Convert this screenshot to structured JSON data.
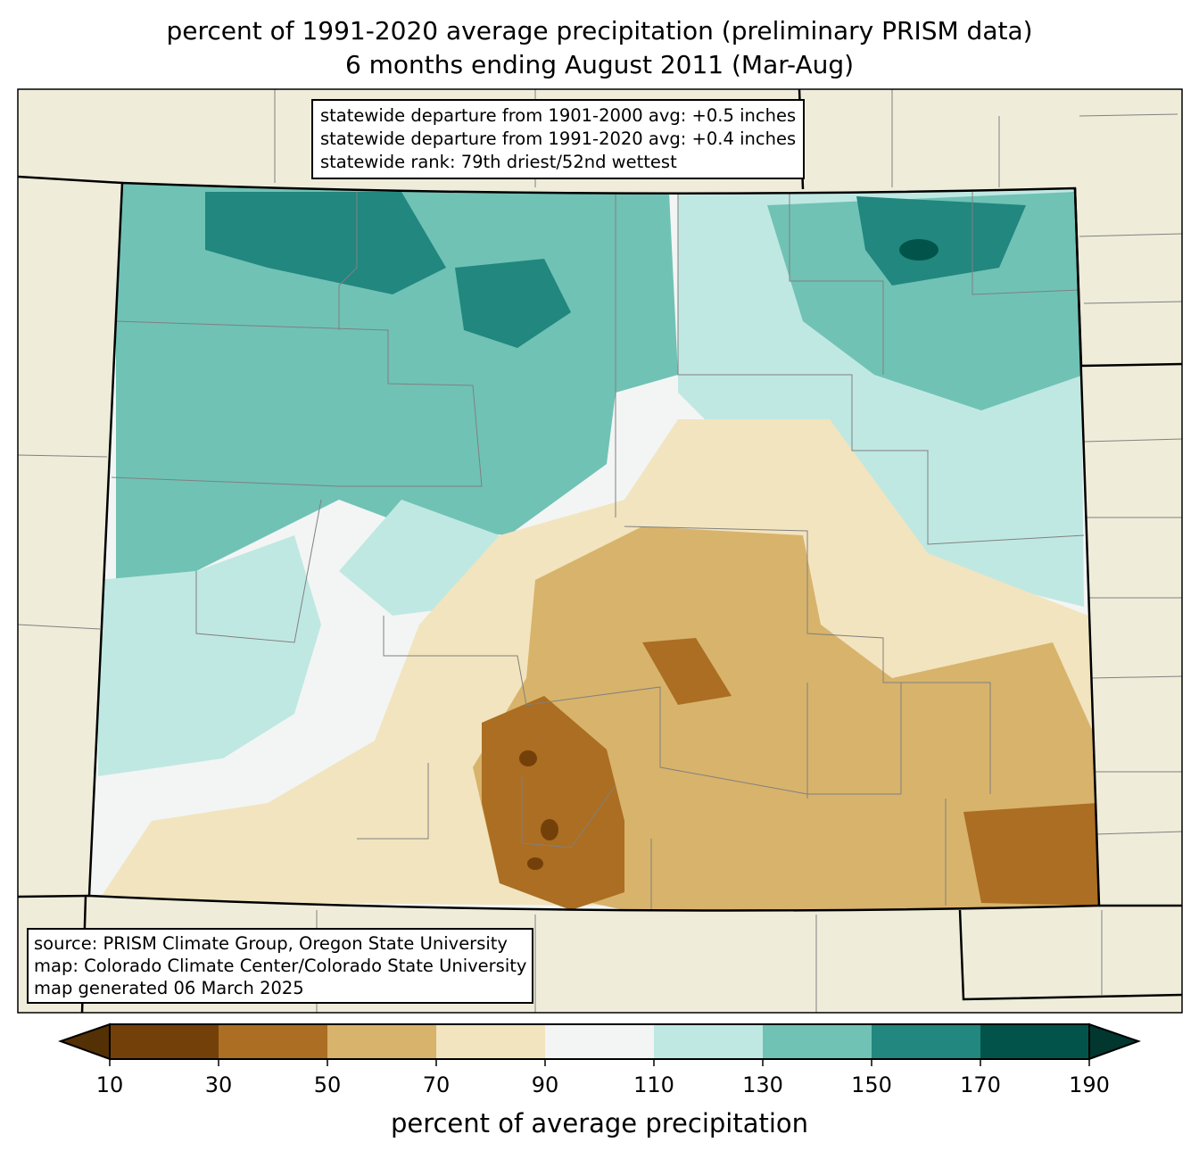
{
  "title": {
    "line1": "percent of 1991-2020 average precipitation (preliminary PRISM data)",
    "line2": "6 months ending August 2011 (Mar-Aug)"
  },
  "stats_box": {
    "line1": "statewide departure from 1901-2000 avg: +0.5 inches",
    "line2": "statewide departure from 1991-2020 avg: +0.4 inches",
    "line3": "statewide rank: 79th driest/52nd wettest"
  },
  "source_box": {
    "line1": "source: PRISM Climate Group, Oregon State University",
    "line2": "map: Colorado Climate Center/Colorado State University",
    "line3": "map generated 06 March 2025"
  },
  "colorbar": {
    "label": "percent of average precipitation",
    "ticks": [
      "10",
      "30",
      "50",
      "70",
      "90",
      "110",
      "130",
      "150",
      "170",
      "190"
    ],
    "colors": [
      "#74400a",
      "#ab6e22",
      "#d8b36b",
      "#f2e4be",
      "#f3f5f4",
      "#c0e8e2",
      "#70c2b5",
      "#21877f",
      "#02544b"
    ],
    "under_color": "#543005",
    "over_color": "#01372f"
  },
  "map_colors": {
    "background": "#efedda",
    "county_lines": "#808080",
    "state_lines": "#000000"
  }
}
